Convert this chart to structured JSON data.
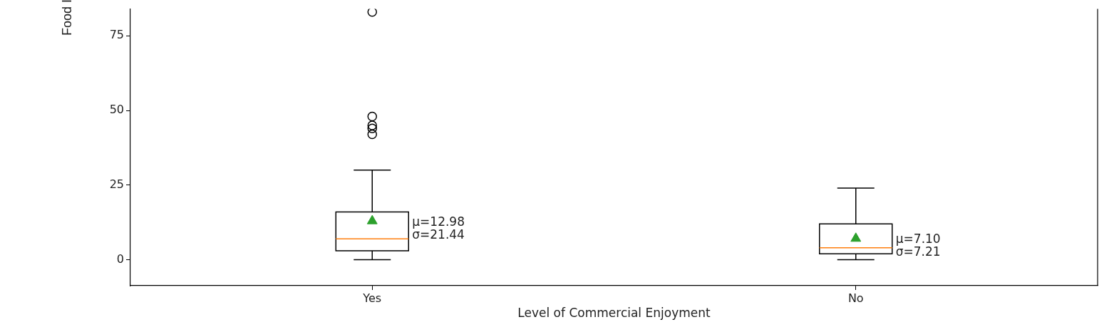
{
  "chart_data": {
    "type": "box",
    "xlabel": "Level of Commercial Enjoyment",
    "ylabel": "Food I",
    "categories": [
      "Yes",
      "No"
    ],
    "boxes": [
      {
        "low": 0,
        "q1": 3,
        "median": 7,
        "q3": 16,
        "high": 30,
        "mean": 12.98,
        "outliers": [
          42,
          44,
          45,
          48,
          83
        ]
      },
      {
        "low": 0,
        "q1": 2,
        "median": 4,
        "q3": 12,
        "high": 24,
        "mean": 7.1
      }
    ],
    "ylim": [
      -8.7,
      84
    ],
    "yticks": [
      0,
      25,
      50,
      75
    ],
    "marker": "triangle",
    "annotations": [
      "μ=12.98",
      "σ=21.44",
      "μ=7.10",
      "σ=7.21"
    ]
  }
}
